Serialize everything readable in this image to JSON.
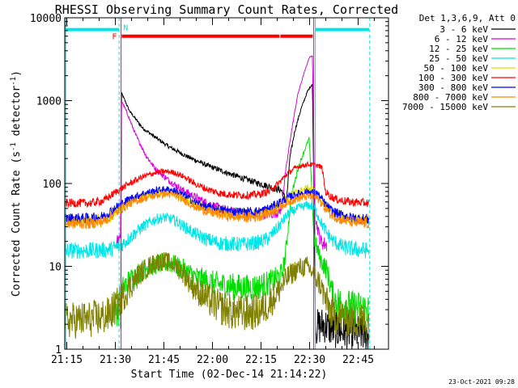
{
  "chart_data": {
    "type": "line",
    "title": "RHESSI Observing Summary Count Rates, Corrected",
    "xlabel": "Start Time (02-Dec-14 21:14:22)",
    "ylabel": "Corrected Count Rate (s⁻¹ detector⁻¹)",
    "ylabel_parts": {
      "main": "Corrected Count Rate (s",
      "sup1": "-1",
      "mid": " detector",
      "sup2": "-1",
      "end": ")"
    },
    "x_axis_unit": "minutes since 21:14:22",
    "xlim": [
      0,
      100
    ],
    "ylim": [
      1,
      10000
    ],
    "y_scale": "log",
    "x_ticks": [
      {
        "value": 0.63,
        "label": "21:15"
      },
      {
        "value": 15.63,
        "label": "21:30"
      },
      {
        "value": 30.63,
        "label": "21:45"
      },
      {
        "value": 45.63,
        "label": "22:00"
      },
      {
        "value": 60.63,
        "label": "22:15"
      },
      {
        "value": 75.63,
        "label": "22:30"
      },
      {
        "value": 90.63,
        "label": "22:45"
      }
    ],
    "y_ticks": [
      {
        "value": 1,
        "label": "1"
      },
      {
        "value": 10,
        "label": "10"
      },
      {
        "value": 100,
        "label": "100"
      },
      {
        "value": 1000,
        "label": "1000"
      },
      {
        "value": 10000,
        "label": "10000"
      }
    ],
    "legend_header": "Det 1,3,6,9, Att 0",
    "legend_position": "right",
    "series": [
      {
        "name": "3 - 6 keV",
        "color": "#000000",
        "points": [
          [
            17.3,
            1.5
          ],
          [
            17.5,
            1250
          ],
          [
            20,
            750
          ],
          [
            24,
            470
          ],
          [
            28,
            360
          ],
          [
            32,
            280
          ],
          [
            38,
            210
          ],
          [
            44,
            165
          ],
          [
            50,
            135
          ],
          [
            56,
            112
          ],
          [
            60,
            100
          ],
          [
            64,
            90
          ],
          [
            67,
            82
          ],
          [
            68.5,
            60
          ],
          [
            69.5,
            200
          ],
          [
            71,
            420
          ],
          [
            73,
            800
          ],
          [
            75,
            1300
          ],
          [
            76.5,
            1600
          ],
          [
            77.5,
            1.8
          ],
          [
            80,
            2
          ],
          [
            83,
            1.7
          ],
          [
            89,
            1.6
          ],
          [
            94,
            1.5
          ]
        ]
      },
      {
        "name": "6 - 12 keV",
        "color": "#dd00dd",
        "points": [
          [
            16,
            20
          ],
          [
            17.2,
            20
          ],
          [
            17.5,
            1000
          ],
          [
            19,
            750
          ],
          [
            22,
            380
          ],
          [
            25,
            220
          ],
          [
            28,
            150
          ],
          [
            32,
            110
          ],
          [
            36,
            85
          ],
          [
            40,
            70
          ],
          [
            44,
            58
          ],
          [
            48,
            50
          ],
          [
            52,
            45
          ],
          [
            56,
            43
          ],
          [
            60,
            42
          ],
          [
            64,
            43
          ],
          [
            66,
            45
          ],
          [
            67,
            50
          ],
          [
            68,
            120
          ],
          [
            70,
            420
          ],
          [
            72,
            1200
          ],
          [
            74,
            2200
          ],
          [
            75.5,
            3300
          ],
          [
            76.5,
            3500
          ],
          [
            77.3,
            40
          ],
          [
            79,
            20
          ],
          [
            81,
            18
          ]
        ]
      },
      {
        "name": "12 - 25 keV",
        "color": "#00dd00",
        "points": [
          [
            15,
            3
          ],
          [
            17,
            3.2
          ],
          [
            17.5,
            5
          ],
          [
            19,
            6
          ],
          [
            22,
            8
          ],
          [
            25,
            9.5
          ],
          [
            28,
            10.5
          ],
          [
            31,
            11
          ],
          [
            34,
            10.5
          ],
          [
            37,
            9
          ],
          [
            40,
            7.5
          ],
          [
            44,
            6.5
          ],
          [
            48,
            6
          ],
          [
            52,
            5.7
          ],
          [
            56,
            5.5
          ],
          [
            60,
            5.7
          ],
          [
            64,
            6.5
          ],
          [
            67,
            8
          ],
          [
            68,
            12
          ],
          [
            70,
            70
          ],
          [
            72,
            150
          ],
          [
            74,
            250
          ],
          [
            75.5,
            350
          ],
          [
            77,
            22
          ],
          [
            79,
            12
          ],
          [
            81,
            9
          ],
          [
            83,
            4
          ],
          [
            88,
            3.2
          ],
          [
            94,
            3
          ]
        ]
      },
      {
        "name": "25 - 50 keV",
        "color": "#00e5e5",
        "points": [
          [
            0,
            15.5
          ],
          [
            8,
            15.5
          ],
          [
            14,
            16
          ],
          [
            17.5,
            18
          ],
          [
            20,
            22
          ],
          [
            24,
            30
          ],
          [
            28,
            37
          ],
          [
            31,
            39
          ],
          [
            34,
            36
          ],
          [
            37,
            30
          ],
          [
            40,
            25
          ],
          [
            44,
            21
          ],
          [
            48,
            19
          ],
          [
            52,
            18.5
          ],
          [
            56,
            18.5
          ],
          [
            60,
            19.5
          ],
          [
            63,
            22
          ],
          [
            66,
            30
          ],
          [
            69,
            43
          ],
          [
            72,
            50
          ],
          [
            75,
            55
          ],
          [
            77,
            52
          ],
          [
            79,
            35
          ],
          [
            81,
            25
          ],
          [
            83,
            20
          ],
          [
            86,
            17
          ],
          [
            90,
            16
          ],
          [
            94,
            15.5
          ]
        ]
      },
      {
        "name": "50 - 100 keV",
        "color": "#dddd00",
        "points": [
          [
            0,
            36
          ],
          [
            8,
            36
          ],
          [
            14,
            38
          ],
          [
            17.5,
            50
          ],
          [
            20,
            62
          ],
          [
            24,
            72
          ],
          [
            28,
            78
          ],
          [
            31,
            80
          ],
          [
            34,
            76
          ],
          [
            37,
            66
          ],
          [
            40,
            56
          ],
          [
            44,
            50
          ],
          [
            48,
            46
          ],
          [
            52,
            44
          ],
          [
            56,
            43
          ],
          [
            60,
            44
          ],
          [
            63,
            47
          ],
          [
            66,
            55
          ],
          [
            69,
            70
          ],
          [
            72,
            80
          ],
          [
            75,
            88
          ],
          [
            77,
            85
          ],
          [
            79,
            65
          ],
          [
            81,
            52
          ],
          [
            83,
            44
          ],
          [
            86,
            40
          ],
          [
            90,
            37
          ],
          [
            94,
            36
          ]
        ]
      },
      {
        "name": "100 - 300 keV",
        "color": "#ff0000",
        "points": [
          [
            0,
            58
          ],
          [
            8,
            58
          ],
          [
            12,
            62
          ],
          [
            16,
            80
          ],
          [
            20,
            100
          ],
          [
            24,
            120
          ],
          [
            28,
            135
          ],
          [
            31,
            140
          ],
          [
            34,
            135
          ],
          [
            37,
            120
          ],
          [
            40,
            100
          ],
          [
            44,
            85
          ],
          [
            48,
            76
          ],
          [
            52,
            73
          ],
          [
            56,
            72
          ],
          [
            60,
            74
          ],
          [
            63,
            80
          ],
          [
            66,
            100
          ],
          [
            69,
            135
          ],
          [
            72,
            160
          ],
          [
            75,
            170
          ],
          [
            78,
            165
          ],
          [
            79.5,
            155
          ],
          [
            80.5,
            80
          ],
          [
            82,
            70
          ],
          [
            84,
            64
          ],
          [
            88,
            60
          ],
          [
            94,
            58
          ]
        ]
      },
      {
        "name": "300 - 800 keV",
        "color": "#0000ff",
        "points": [
          [
            0,
            38
          ],
          [
            8,
            38
          ],
          [
            12,
            40
          ],
          [
            16,
            52
          ],
          [
            20,
            65
          ],
          [
            24,
            75
          ],
          [
            28,
            82
          ],
          [
            31,
            85
          ],
          [
            34,
            82
          ],
          [
            37,
            72
          ],
          [
            40,
            60
          ],
          [
            44,
            52
          ],
          [
            48,
            48
          ],
          [
            52,
            46
          ],
          [
            56,
            45
          ],
          [
            60,
            46
          ],
          [
            63,
            50
          ],
          [
            66,
            58
          ],
          [
            69,
            68
          ],
          [
            72,
            75
          ],
          [
            75,
            80
          ],
          [
            78,
            76
          ],
          [
            80,
            60
          ],
          [
            82,
            48
          ],
          [
            85,
            42
          ],
          [
            89,
            38
          ],
          [
            94,
            37
          ]
        ]
      },
      {
        "name": "800 - 7000 keV",
        "color": "#ff8800",
        "points": [
          [
            0,
            33
          ],
          [
            8,
            33
          ],
          [
            12,
            35
          ],
          [
            16,
            45
          ],
          [
            20,
            57
          ],
          [
            24,
            66
          ],
          [
            28,
            72
          ],
          [
            31,
            75
          ],
          [
            34,
            72
          ],
          [
            37,
            63
          ],
          [
            40,
            53
          ],
          [
            44,
            46
          ],
          [
            48,
            42
          ],
          [
            52,
            40
          ],
          [
            56,
            39
          ],
          [
            60,
            40
          ],
          [
            63,
            44
          ],
          [
            66,
            51
          ],
          [
            69,
            60
          ],
          [
            72,
            66
          ],
          [
            75,
            70
          ],
          [
            78,
            67
          ],
          [
            80,
            53
          ],
          [
            82,
            43
          ],
          [
            85,
            37
          ],
          [
            89,
            34
          ],
          [
            94,
            33
          ]
        ]
      },
      {
        "name": "7000 - 15000 keV",
        "color": "#808000",
        "points": [
          [
            0,
            2.2
          ],
          [
            8,
            2.3
          ],
          [
            13,
            2.5
          ],
          [
            15,
            3
          ],
          [
            17.5,
            4
          ],
          [
            20,
            5.5
          ],
          [
            23,
            8
          ],
          [
            26,
            10
          ],
          [
            29,
            11.5
          ],
          [
            31,
            11.5
          ],
          [
            34,
            10.5
          ],
          [
            37,
            8
          ],
          [
            40,
            5.5
          ],
          [
            44,
            4
          ],
          [
            48,
            3.2
          ],
          [
            52,
            2.8
          ],
          [
            56,
            2.7
          ],
          [
            60,
            2.9
          ],
          [
            63,
            3.5
          ],
          [
            66,
            5
          ],
          [
            69,
            7.5
          ],
          [
            72,
            9.5
          ],
          [
            75,
            10
          ],
          [
            77,
            8
          ],
          [
            79,
            6
          ],
          [
            81,
            3.5
          ],
          [
            83,
            2.5
          ],
          [
            88,
            2.3
          ],
          [
            94,
            2.2
          ]
        ]
      }
    ],
    "bars": [
      {
        "label": "F",
        "color": "#ff0000",
        "y": 6000,
        "segments": [
          [
            17.6,
            66.3
          ],
          [
            66.6,
            76.6
          ]
        ]
      },
      {
        "label": "N",
        "color": "#00e5e5",
        "y": 7200,
        "segments": [
          [
            0,
            16.8
          ],
          [
            77.4,
            94
          ]
        ]
      }
    ],
    "vlines": [
      {
        "x": 0.3,
        "color": "#00e5e5",
        "style": "solid"
      },
      {
        "x": 16.8,
        "color": "#00e5e5",
        "style": "dashed"
      },
      {
        "x": 17.4,
        "color": "#dd00dd",
        "style": "solid"
      },
      {
        "x": 76.9,
        "color": "#dd00dd",
        "style": "solid"
      },
      {
        "x": 77.4,
        "color": "#00e5e5",
        "style": "solid"
      },
      {
        "x": 94.2,
        "color": "#00e5e5",
        "style": "dashed"
      }
    ],
    "footer_date": "23-Oct-2021 09:28"
  }
}
